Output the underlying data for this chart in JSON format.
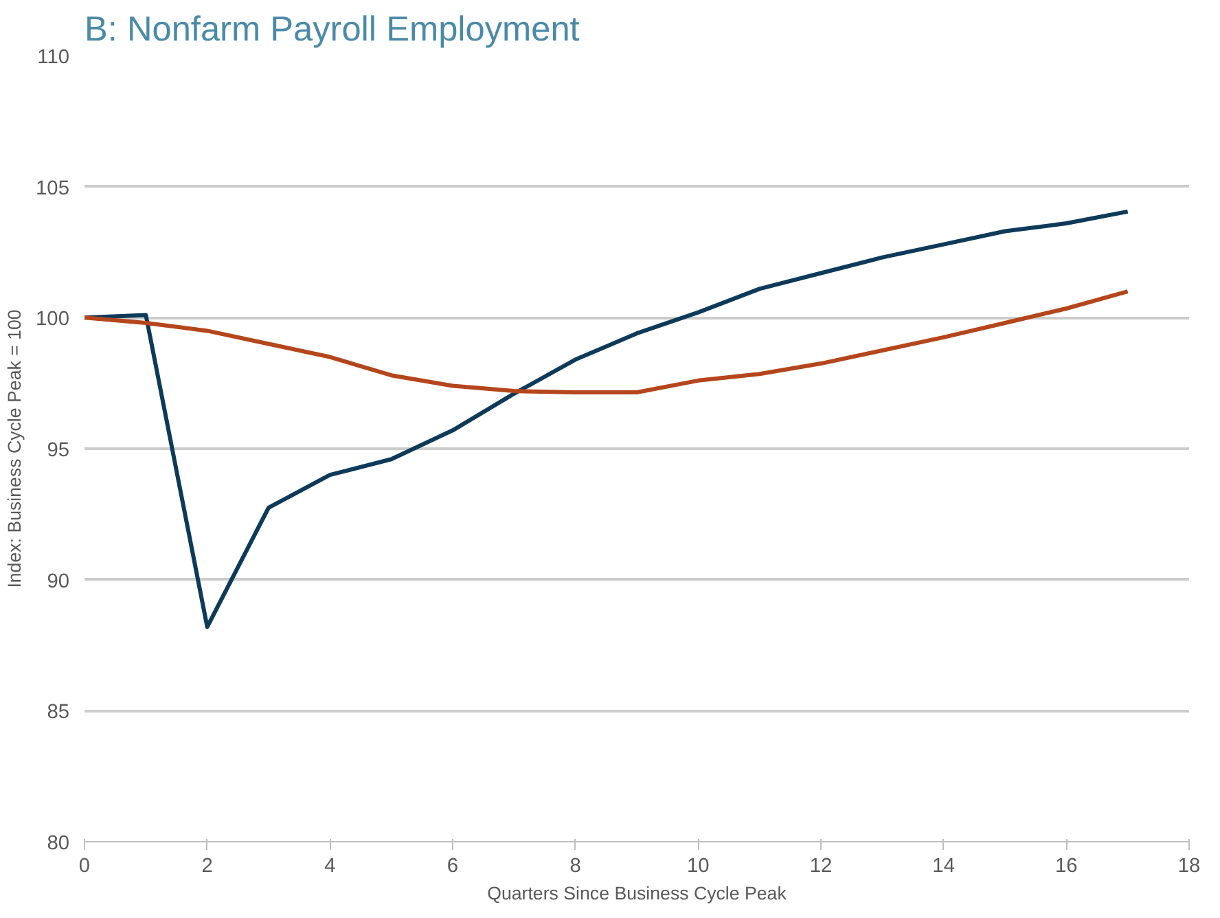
{
  "chart_data": {
    "type": "line",
    "title": "B: Nonfarm Payroll Employment",
    "xlabel": "Quarters Since Business Cycle Peak",
    "ylabel": "Index: Business Cycle Peak = 100",
    "x": [
      0,
      1,
      2,
      3,
      4,
      5,
      6,
      7,
      8,
      9,
      10,
      11,
      12,
      13,
      14,
      15,
      16,
      17
    ],
    "series": [
      {
        "color": "#0e3a5a",
        "values": [
          100,
          100.1,
          88.2,
          92.75,
          94.0,
          94.6,
          95.7,
          97.1,
          98.4,
          99.4,
          100.2,
          101.1,
          101.7,
          102.3,
          102.8,
          103.3,
          103.6,
          104.05
        ]
      },
      {
        "color": "#b5451b",
        "values": [
          100,
          99.8,
          99.5,
          99.0,
          98.5,
          97.8,
          97.4,
          97.2,
          97.15,
          97.15,
          97.6,
          97.85,
          98.25,
          98.75,
          99.25,
          99.8,
          100.35,
          101.0
        ]
      }
    ],
    "xlim": [
      0,
      18
    ],
    "xticks": [
      0,
      2,
      4,
      6,
      8,
      10,
      12,
      14,
      16,
      18
    ],
    "ylim": [
      80,
      110
    ],
    "yticks": [
      80,
      85,
      90,
      95,
      100,
      105,
      110
    ],
    "grid": "y"
  }
}
